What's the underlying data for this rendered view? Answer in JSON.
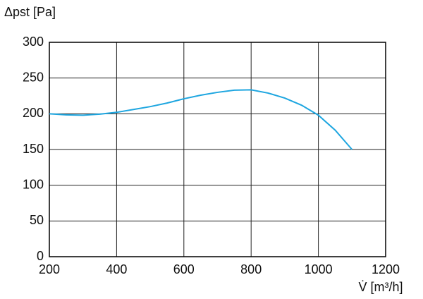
{
  "chart_data": {
    "type": "line",
    "y_label": "Δpst [Pa]",
    "x_label": "V̇ [m³/h]",
    "x": [
      200,
      250,
      300,
      350,
      400,
      450,
      500,
      550,
      600,
      650,
      700,
      750,
      800,
      850,
      900,
      950,
      1000,
      1050,
      1100
    ],
    "values": [
      200,
      198.5,
      198,
      199.5,
      202,
      206,
      210,
      215,
      221,
      226,
      230,
      233,
      233.5,
      229,
      222,
      212,
      198,
      177,
      150
    ],
    "color": "#1ea6e0",
    "xlim": [
      200,
      1200
    ],
    "xticks": [
      200,
      400,
      600,
      800,
      1000,
      1200
    ],
    "ylim": [
      0,
      300
    ],
    "yticks": [
      0,
      50,
      100,
      150,
      200,
      250,
      300
    ],
    "grid": true
  }
}
